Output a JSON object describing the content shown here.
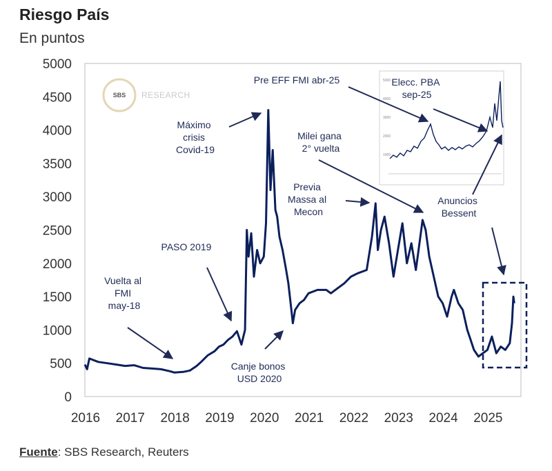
{
  "header": {
    "title": "Riesgo País",
    "subtitle": "En puntos"
  },
  "source": {
    "label": "Fuente",
    "text": ": SBS Research, Reuters"
  },
  "logo": {
    "mark": "SBS",
    "text": "RESEARCH"
  },
  "colors": {
    "line": "#0b1f5c",
    "axis": "#999999",
    "text": "#1f2a55"
  },
  "annotations": [
    {
      "id": "vuelta-fmi",
      "lines": [
        "Vuelta al",
        "FMI",
        "may-18"
      ]
    },
    {
      "id": "paso-2019",
      "lines": [
        "PASO 2019"
      ]
    },
    {
      "id": "maximo-covid",
      "lines": [
        "Máximo",
        "crisis",
        "Covid-19"
      ]
    },
    {
      "id": "canje-bonos",
      "lines": [
        "Canje bonos",
        "USD 2020"
      ]
    },
    {
      "id": "pre-eff",
      "lines": [
        "Pre EFF FMI abr-25"
      ]
    },
    {
      "id": "milei",
      "lines": [
        "Milei gana",
        "2° vuelta"
      ]
    },
    {
      "id": "massa",
      "lines": [
        "Previa",
        "Massa al",
        "Mecon"
      ]
    },
    {
      "id": "elecc-pba",
      "lines": [
        "Elecc. PBA",
        "sep-25"
      ]
    },
    {
      "id": "bessent",
      "lines": [
        "Anuncios",
        "Bessent"
      ]
    }
  ],
  "chart_data": {
    "type": "line",
    "title": "Riesgo País",
    "subtitle": "En puntos",
    "ylim": [
      0,
      5000
    ],
    "yticks": [
      0,
      500,
      1000,
      1500,
      2000,
      2500,
      3000,
      3500,
      4000,
      4500,
      5000
    ],
    "xlim": [
      2016,
      2025.75
    ],
    "xticks": [
      2016,
      2017,
      2018,
      2019,
      2020,
      2021,
      2022,
      2023,
      2024,
      2025
    ],
    "grid": false,
    "series": [
      {
        "x": [
          2016.0,
          2016.05,
          2016.1,
          2016.3,
          2016.5,
          2016.7,
          2016.9,
          2017.1,
          2017.3,
          2017.5,
          2017.7,
          2017.9,
          2018.0,
          2018.2,
          2018.35,
          2018.5,
          2018.6,
          2018.75,
          2018.9,
          2019.0,
          2019.1,
          2019.2,
          2019.3,
          2019.4,
          2019.5,
          2019.58,
          2019.62,
          2019.66,
          2019.72,
          2019.78,
          2019.85,
          2019.92,
          2020.0,
          2020.05,
          2020.1,
          2020.15,
          2020.2,
          2020.26,
          2020.3,
          2020.35,
          2020.42,
          2020.5,
          2020.55,
          2020.6,
          2020.65,
          2020.7,
          2020.8,
          2020.9,
          2021.0,
          2021.2,
          2021.4,
          2021.5,
          2021.6,
          2021.8,
          2021.95,
          2022.1,
          2022.3,
          2022.42,
          2022.5,
          2022.55,
          2022.62,
          2022.7,
          2022.8,
          2022.9,
          2023.0,
          2023.1,
          2023.2,
          2023.3,
          2023.4,
          2023.5,
          2023.55,
          2023.62,
          2023.7,
          2023.8,
          2023.9,
          2024.0,
          2024.1,
          2024.2,
          2024.25,
          2024.35,
          2024.45,
          2024.55,
          2024.6,
          2024.7,
          2024.8,
          2024.9,
          2025.0,
          2025.1,
          2025.2,
          2025.3,
          2025.4,
          2025.5,
          2025.55,
          2025.58,
          2025.6
        ],
        "y": [
          480,
          410,
          570,
          520,
          500,
          480,
          460,
          470,
          430,
          420,
          410,
          380,
          360,
          370,
          390,
          460,
          520,
          620,
          680,
          750,
          780,
          850,
          900,
          980,
          780,
          1000,
          2500,
          2100,
          2450,
          1800,
          2200,
          2000,
          2100,
          2600,
          4300,
          3100,
          3700,
          2800,
          2700,
          2400,
          2200,
          1900,
          1700,
          1400,
          1100,
          1300,
          1400,
          1450,
          1550,
          1600,
          1600,
          1550,
          1600,
          1700,
          1800,
          1850,
          1900,
          2400,
          2900,
          2200,
          2500,
          2700,
          2300,
          1800,
          2200,
          2600,
          2000,
          2300,
          1900,
          2400,
          2650,
          2500,
          2100,
          1800,
          1500,
          1400,
          1200,
          1500,
          1600,
          1400,
          1300,
          1000,
          900,
          700,
          600,
          650,
          700,
          900,
          650,
          750,
          700,
          800,
          1100,
          1500,
          1400
        ]
      }
    ]
  }
}
